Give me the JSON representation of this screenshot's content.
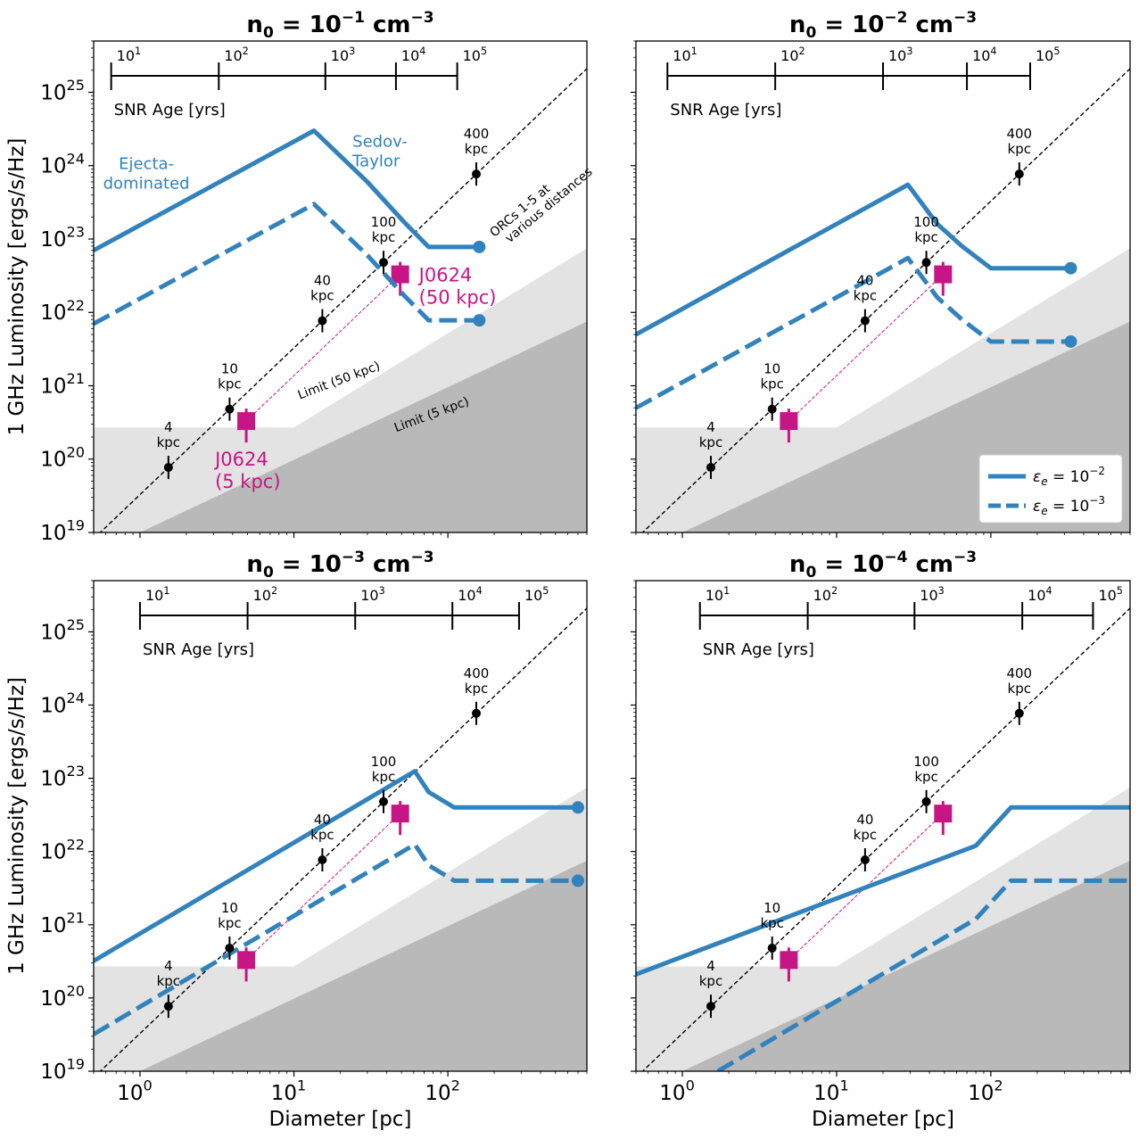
{
  "figure": {
    "shared_xlabel": "Diameter [pc]",
    "shared_ylabel": "1 GHz Luminosity [ergs/s/Hz]",
    "colors": {
      "model": "#3182bd",
      "j0624": "#c71585",
      "limit_light": "#e3e3e3",
      "limit_dark": "#b9b9b9",
      "orc": "#000000"
    }
  },
  "chart_data": [
    {
      "type": "line",
      "panel": "top-left",
      "title_base": "n",
      "title_sub": "0",
      "title_eq": " = 10",
      "title_exp": "−1",
      "title_unit": " cm",
      "title_unit_exp": "−3",
      "xscale": "log",
      "yscale": "log",
      "xlim": [
        0.5,
        800
      ],
      "ylim": [
        1e+19,
        5e+25
      ],
      "xlabel": "",
      "ylabel": "1 GHz Luminosity [ergs/s/Hz]",
      "x_tick_labels": [],
      "y_tick_labels": [
        {
          "base": "10",
          "exp": "19"
        },
        {
          "base": "10",
          "exp": "20"
        },
        {
          "base": "10",
          "exp": "21"
        },
        {
          "base": "10",
          "exp": "22"
        },
        {
          "base": "10",
          "exp": "23"
        },
        {
          "base": "10",
          "exp": "24"
        },
        {
          "base": "10",
          "exp": "25"
        }
      ],
      "series": [
        {
          "name": "εe = 1e-2",
          "style": "solid",
          "x": [
            0.5,
            13.5,
            30,
            52,
            75,
            110,
            160
          ],
          "y": [
            7e+22,
            3e+24,
            6e+23,
            1.7e+23,
            7.8e+22,
            7.8e+22,
            7.8e+22
          ],
          "end_marker": true
        },
        {
          "name": "εe = 1e-3",
          "style": "dashed",
          "x": [
            0.5,
            13.5,
            30,
            52,
            75,
            110,
            160
          ],
          "y": [
            7e+21,
            3e+23,
            6e+22,
            1.7e+22,
            7.8e+21,
            7.8e+21,
            7.8e+21
          ],
          "end_marker": true
        }
      ],
      "orc_points": [
        {
          "x": 1.53,
          "y": 7.7e+19,
          "label1": "4",
          "label2": "kpc"
        },
        {
          "x": 3.82,
          "y": 4.8e+20,
          "label1": "10",
          "label2": "kpc"
        },
        {
          "x": 15.3,
          "y": 7.7e+21,
          "label1": "40",
          "label2": "kpc"
        },
        {
          "x": 38.2,
          "y": 4.8e+22,
          "label1": "100",
          "label2": "kpc"
        },
        {
          "x": 153,
          "y": 7.7e+23,
          "label1": "400",
          "label2": "kpc"
        }
      ],
      "orc_line": {
        "x": [
          0.5,
          800
        ],
        "y": [
          8.2e+18,
          2.1e+25
        ]
      },
      "orc_line_label1": "ORCs 1-5 at",
      "orc_line_label2": "various distances",
      "j0624": [
        {
          "x": 4.9,
          "y": 3.3e+20,
          "label1": "J0624",
          "label2": "(5 kpc)"
        },
        {
          "x": 49,
          "y": 3.3e+22,
          "label1": "J0624",
          "label2": "(50 kpc)"
        }
      ],
      "limit_50kpc": {
        "label": "Limit (50 kpc)",
        "x": [
          0.5,
          800
        ],
        "y": [
          2.7e+20,
          7.5e+22
        ],
        "flat_until": 10
      },
      "limit_5kpc": {
        "label": "Limit (5 kpc)",
        "x": [
          1,
          800
        ],
        "y": [
          1e+19,
          7.5e+21
        ]
      },
      "annotations": [
        {
          "text1": "Ejecta-",
          "text2": "dominated"
        },
        {
          "text1": "Sedov-",
          "text2": "Taylor"
        }
      ],
      "age_scale": {
        "label": "SNR Age [yrs]",
        "ticks": [
          {
            "base": "10",
            "exp": "1"
          },
          {
            "base": "10",
            "exp": "2"
          },
          {
            "base": "10",
            "exp": "3"
          },
          {
            "base": "10",
            "exp": "4"
          },
          {
            "base": "10",
            "exp": "5"
          }
        ],
        "tick_diameters": [
          0.65,
          3.25,
          16,
          46,
          115
        ]
      },
      "legend": null
    },
    {
      "type": "line",
      "panel": "top-right",
      "title_base": "n",
      "title_sub": "0",
      "title_eq": " = 10",
      "title_exp": "−2",
      "title_unit": " cm",
      "title_unit_exp": "−3",
      "xscale": "log",
      "yscale": "log",
      "xlim": [
        0.5,
        800
      ],
      "ylim": [
        1e+19,
        5e+25
      ],
      "xlabel": "",
      "ylabel": "",
      "x_tick_labels": [],
      "y_tick_labels": [],
      "series": [
        {
          "name": "εe = 1e-2",
          "style": "solid",
          "x": [
            0.5,
            29,
            45,
            65,
            100,
            150,
            330
          ],
          "y": [
            5e+21,
            5.5e+23,
            1.6e+23,
            8e+22,
            4e+22,
            4e+22,
            4e+22
          ],
          "end_marker": true
        },
        {
          "name": "εe = 1e-3",
          "style": "dashed",
          "x": [
            0.5,
            29,
            45,
            65,
            100,
            150,
            330
          ],
          "y": [
            5e+20,
            5.5e+22,
            1.6e+22,
            8e+21,
            4e+21,
            4e+21,
            4e+21
          ],
          "end_marker": true
        }
      ],
      "orc_points": [
        {
          "x": 1.53,
          "y": 7.7e+19,
          "label1": "4",
          "label2": "kpc"
        },
        {
          "x": 3.82,
          "y": 4.8e+20,
          "label1": "10",
          "label2": "kpc"
        },
        {
          "x": 15.3,
          "y": 7.7e+21,
          "label1": "40",
          "label2": "kpc"
        },
        {
          "x": 38.2,
          "y": 4.8e+22,
          "label1": "100",
          "label2": "kpc"
        },
        {
          "x": 153,
          "y": 7.7e+23,
          "label1": "400",
          "label2": "kpc"
        }
      ],
      "orc_line": {
        "x": [
          0.5,
          800
        ],
        "y": [
          8.2e+18,
          2.1e+25
        ]
      },
      "j0624": [
        {
          "x": 4.9,
          "y": 3.3e+20
        },
        {
          "x": 49,
          "y": 3.3e+22
        }
      ],
      "limit_50kpc": {
        "x": [
          0.5,
          800
        ],
        "y": [
          2.7e+20,
          7.5e+22
        ],
        "flat_until": 10
      },
      "limit_5kpc": {
        "x": [
          1,
          800
        ],
        "y": [
          1e+19,
          7.5e+21
        ]
      },
      "age_scale": {
        "label": "SNR Age [yrs]",
        "ticks": [
          {
            "base": "10",
            "exp": "1"
          },
          {
            "base": "10",
            "exp": "2"
          },
          {
            "base": "10",
            "exp": "3"
          },
          {
            "base": "10",
            "exp": "4"
          },
          {
            "base": "10",
            "exp": "5"
          }
        ],
        "tick_diameters": [
          0.8,
          4,
          20,
          70,
          180
        ]
      },
      "legend": {
        "position": "lower-right",
        "entries": [
          {
            "style": "solid",
            "sym": "ε",
            "sub": "e",
            "eq": " = 10",
            "exp": "−2"
          },
          {
            "style": "dashed",
            "sym": "ε",
            "sub": "e",
            "eq": " = 10",
            "exp": "−3"
          }
        ]
      }
    },
    {
      "type": "line",
      "panel": "bottom-left",
      "title_base": "n",
      "title_sub": "0",
      "title_eq": " = 10",
      "title_exp": "−3",
      "title_unit": " cm",
      "title_unit_exp": "−3",
      "xscale": "log",
      "yscale": "log",
      "xlim": [
        0.5,
        800
      ],
      "ylim": [
        1e+19,
        5e+25
      ],
      "xlabel": "Diameter [pc]",
      "ylabel": "1 GHz Luminosity [ergs/s/Hz]",
      "x_tick_labels": [
        {
          "base": "10",
          "exp": "0"
        },
        {
          "base": "10",
          "exp": "1"
        },
        {
          "base": "10",
          "exp": "2"
        }
      ],
      "y_tick_labels": [
        {
          "base": "10",
          "exp": "19"
        },
        {
          "base": "10",
          "exp": "20"
        },
        {
          "base": "10",
          "exp": "21"
        },
        {
          "base": "10",
          "exp": "22"
        },
        {
          "base": "10",
          "exp": "23"
        },
        {
          "base": "10",
          "exp": "24"
        },
        {
          "base": "10",
          "exp": "25"
        }
      ],
      "series": [
        {
          "name": "εe = 1e-2",
          "style": "solid",
          "x": [
            0.5,
            61,
            75,
            110,
            300,
            700
          ],
          "y": [
            3.2e+20,
            1.25e+23,
            6.5e+22,
            4e+22,
            4e+22,
            4e+22
          ],
          "end_marker": true
        },
        {
          "name": "εe = 1e-3",
          "style": "dashed",
          "x": [
            0.5,
            61,
            75,
            110,
            300,
            700
          ],
          "y": [
            3.2e+19,
            1.25e+22,
            6.5e+21,
            4e+21,
            4e+21,
            4e+21
          ],
          "end_marker": true
        }
      ],
      "orc_points": [
        {
          "x": 1.53,
          "y": 7.7e+19,
          "label1": "4",
          "label2": "kpc"
        },
        {
          "x": 3.82,
          "y": 4.8e+20,
          "label1": "10",
          "label2": "kpc"
        },
        {
          "x": 15.3,
          "y": 7.7e+21,
          "label1": "40",
          "label2": "kpc"
        },
        {
          "x": 38.2,
          "y": 4.8e+22,
          "label1": "100",
          "label2": "kpc"
        },
        {
          "x": 153,
          "y": 7.7e+23,
          "label1": "400",
          "label2": "kpc"
        }
      ],
      "orc_line": {
        "x": [
          0.5,
          800
        ],
        "y": [
          8.2e+18,
          2.1e+25
        ]
      },
      "j0624": [
        {
          "x": 4.9,
          "y": 3.3e+20
        },
        {
          "x": 49,
          "y": 3.3e+22
        }
      ],
      "limit_50kpc": {
        "x": [
          0.5,
          800
        ],
        "y": [
          2.7e+20,
          7.5e+22
        ],
        "flat_until": 10
      },
      "limit_5kpc": {
        "x": [
          1,
          800
        ],
        "y": [
          1e+19,
          7.5e+21
        ]
      },
      "age_scale": {
        "label": "SNR Age [yrs]",
        "ticks": [
          {
            "base": "10",
            "exp": "1"
          },
          {
            "base": "10",
            "exp": "2"
          },
          {
            "base": "10",
            "exp": "3"
          },
          {
            "base": "10",
            "exp": "4"
          },
          {
            "base": "10",
            "exp": "5"
          }
        ],
        "tick_diameters": [
          1,
          5,
          25,
          107,
          290
        ]
      },
      "legend": null
    },
    {
      "type": "line",
      "panel": "bottom-right",
      "title_base": "n",
      "title_sub": "0",
      "title_eq": " = 10",
      "title_exp": "−4",
      "title_unit": " cm",
      "title_unit_exp": "−3",
      "xscale": "log",
      "yscale": "log",
      "xlim": [
        0.5,
        800
      ],
      "ylim": [
        1e+19,
        5e+25
      ],
      "xlabel": "Diameter [pc]",
      "ylabel": "",
      "x_tick_labels": [
        {
          "base": "10",
          "exp": "0"
        },
        {
          "base": "10",
          "exp": "1"
        },
        {
          "base": "10",
          "exp": "2"
        }
      ],
      "y_tick_labels": [],
      "series": [
        {
          "name": "εe = 1e-2",
          "style": "solid",
          "x": [
            0.5,
            80,
            135,
            800
          ],
          "y": [
            2.1e+20,
            1.2e+22,
            4e+22,
            4e+22
          ],
          "end_marker": false
        },
        {
          "name": "εe = 1e-3",
          "style": "dashed",
          "x": [
            1.7,
            80,
            135,
            800
          ],
          "y": [
            1e+19,
            1.2e+21,
            4e+21,
            4e+21
          ],
          "end_marker": false
        }
      ],
      "orc_points": [
        {
          "x": 1.53,
          "y": 7.7e+19,
          "label1": "4",
          "label2": "kpc"
        },
        {
          "x": 3.82,
          "y": 4.8e+20,
          "label1": "10",
          "label2": "kpc"
        },
        {
          "x": 15.3,
          "y": 7.7e+21,
          "label1": "40",
          "label2": "kpc"
        },
        {
          "x": 38.2,
          "y": 4.8e+22,
          "label1": "100",
          "label2": "kpc"
        },
        {
          "x": 153,
          "y": 7.7e+23,
          "label1": "400",
          "label2": "kpc"
        }
      ],
      "orc_line": {
        "x": [
          0.5,
          800
        ],
        "y": [
          8.2e+18,
          2.1e+25
        ]
      },
      "j0624": [
        {
          "x": 4.9,
          "y": 3.3e+20
        },
        {
          "x": 49,
          "y": 3.3e+22
        }
      ],
      "limit_50kpc": {
        "x": [
          0.5,
          800
        ],
        "y": [
          2.7e+20,
          7.5e+22
        ],
        "flat_until": 10
      },
      "limit_5kpc": {
        "x": [
          1,
          800
        ],
        "y": [
          1e+19,
          7.5e+21
        ]
      },
      "age_scale": {
        "label": "SNR Age [yrs]",
        "ticks": [
          {
            "base": "10",
            "exp": "1"
          },
          {
            "base": "10",
            "exp": "2"
          },
          {
            "base": "10",
            "exp": "3"
          },
          {
            "base": "10",
            "exp": "4"
          },
          {
            "base": "10",
            "exp": "5"
          }
        ],
        "tick_diameters": [
          1.3,
          6.5,
          32,
          160,
          460
        ]
      },
      "legend": null
    }
  ]
}
